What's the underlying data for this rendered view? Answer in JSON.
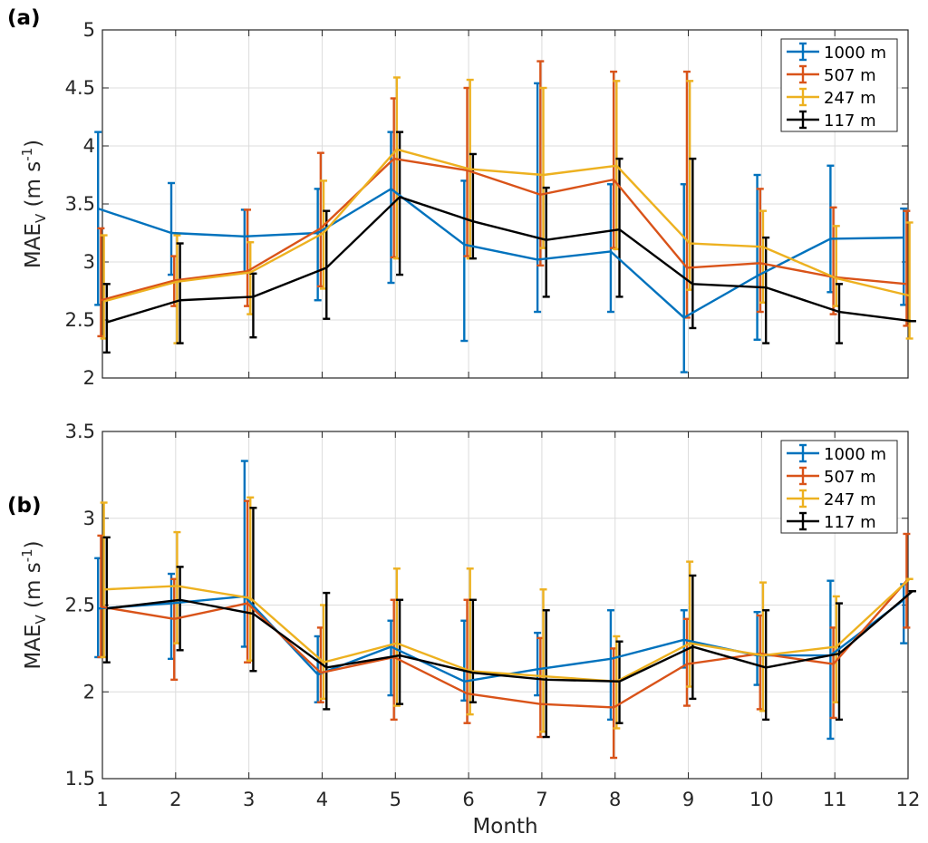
{
  "chart_data": [
    {
      "type": "line",
      "panel_label": "(a)",
      "xlabel": "",
      "ylabel": "MAE",
      "ylabel_sub": "V",
      "ylabel_units": "(m s",
      "ylabel_sup": "-1",
      "ylabel_close": ")",
      "xlim": [
        1,
        12
      ],
      "ylim": [
        2,
        5
      ],
      "xticks": [
        "1",
        "2",
        "3",
        "4",
        "5",
        "6",
        "7",
        "8",
        "9",
        "10",
        "11",
        "12"
      ],
      "yticks": [
        "2",
        "2.5",
        "3",
        "3.5",
        "4",
        "4.5",
        "5"
      ],
      "grid": true,
      "legend": "top-right",
      "x": [
        1,
        2,
        3,
        4,
        5,
        6,
        7,
        8,
        9,
        10,
        11,
        12
      ],
      "series": [
        {
          "name": "1000 m",
          "color": "#0072BD",
          "values": [
            3.46,
            3.25,
            3.22,
            3.25,
            3.63,
            3.15,
            3.02,
            3.09,
            2.52,
            2.88,
            3.2,
            3.21
          ],
          "err_low": [
            2.63,
            2.89,
            2.91,
            2.67,
            2.82,
            2.32,
            2.57,
            2.57,
            2.05,
            2.33,
            2.74,
            2.63
          ],
          "err_high": [
            4.12,
            3.68,
            3.45,
            3.63,
            4.12,
            3.7,
            4.54,
            3.67,
            3.67,
            3.75,
            3.83,
            3.46
          ]
        },
        {
          "name": "507 m",
          "color": "#D95319",
          "values": [
            2.67,
            2.84,
            2.92,
            3.29,
            3.89,
            3.79,
            3.58,
            3.71,
            2.95,
            2.99,
            2.87,
            2.81
          ],
          "err_low": [
            2.36,
            2.62,
            2.62,
            2.79,
            3.04,
            3.05,
            2.97,
            3.12,
            2.52,
            2.57,
            2.55,
            2.45
          ],
          "err_high": [
            3.29,
            3.05,
            3.45,
            3.94,
            4.41,
            4.5,
            4.73,
            4.64,
            4.64,
            3.63,
            3.47,
            3.44
          ]
        },
        {
          "name": "247 m",
          "color": "#EDB120",
          "values": [
            2.66,
            2.83,
            2.91,
            3.25,
            3.97,
            3.8,
            3.75,
            3.83,
            3.16,
            3.13,
            2.86,
            2.71
          ],
          "err_low": [
            2.34,
            2.3,
            2.55,
            2.77,
            3.03,
            3.03,
            3.12,
            3.11,
            2.76,
            2.65,
            2.62,
            2.34
          ],
          "err_high": [
            3.23,
            3.23,
            3.17,
            3.7,
            4.59,
            4.57,
            4.5,
            4.56,
            4.56,
            3.44,
            3.31,
            3.34
          ]
        },
        {
          "name": "117 m",
          "color": "#000000",
          "values": [
            2.48,
            2.67,
            2.7,
            2.95,
            3.56,
            3.35,
            3.19,
            3.28,
            2.81,
            2.78,
            2.57,
            2.49
          ],
          "err_low": [
            2.22,
            2.3,
            2.35,
            2.51,
            2.89,
            3.03,
            2.7,
            2.7,
            2.43,
            2.3,
            2.3,
            2.49
          ],
          "err_high": [
            2.81,
            3.16,
            2.9,
            3.44,
            4.12,
            3.93,
            3.64,
            3.89,
            3.89,
            3.21,
            2.81,
            2.49
          ]
        }
      ]
    },
    {
      "type": "line",
      "panel_label": "(b)",
      "xlabel": "Month",
      "ylabel": "MAE",
      "ylabel_sub": "V",
      "ylabel_units": "(m s",
      "ylabel_sup": "-1",
      "ylabel_close": ")",
      "xlim": [
        1,
        12
      ],
      "ylim": [
        1.5,
        3.5
      ],
      "xticks": [
        "1",
        "2",
        "3",
        "4",
        "5",
        "6",
        "7",
        "8",
        "9",
        "10",
        "11",
        "12"
      ],
      "yticks": [
        "1.5",
        "2",
        "2.5",
        "3",
        "3.5"
      ],
      "grid": true,
      "legend": "top-right",
      "x": [
        1,
        2,
        3,
        4,
        5,
        6,
        7,
        8,
        9,
        10,
        11,
        12
      ],
      "series": [
        {
          "name": "1000 m",
          "color": "#0072BD",
          "values": [
            2.48,
            2.51,
            2.55,
            2.1,
            2.26,
            2.06,
            2.13,
            2.19,
            2.3,
            2.21,
            2.21,
            2.53
          ],
          "err_low": [
            2.2,
            2.19,
            2.26,
            1.94,
            1.98,
            1.95,
            1.98,
            1.84,
            2.14,
            2.04,
            1.73,
            2.28
          ],
          "err_high": [
            2.77,
            2.68,
            3.33,
            2.32,
            2.41,
            2.41,
            2.34,
            2.47,
            2.47,
            2.46,
            2.64,
            2.62
          ]
        },
        {
          "name": "507 m",
          "color": "#D95319",
          "values": [
            2.49,
            2.42,
            2.51,
            2.11,
            2.2,
            1.99,
            1.93,
            1.91,
            2.16,
            2.22,
            2.16,
            2.64
          ],
          "err_low": [
            2.2,
            2.07,
            2.17,
            1.94,
            1.84,
            1.82,
            1.74,
            1.62,
            1.92,
            1.9,
            1.85,
            2.37
          ],
          "err_high": [
            2.9,
            2.65,
            3.1,
            2.37,
            2.53,
            2.53,
            2.31,
            2.25,
            2.42,
            2.44,
            2.37,
            2.91
          ]
        },
        {
          "name": "247 m",
          "color": "#EDB120",
          "values": [
            2.59,
            2.61,
            2.54,
            2.17,
            2.28,
            2.12,
            2.09,
            2.06,
            2.28,
            2.21,
            2.26,
            2.65
          ],
          "err_low": [
            2.2,
            2.28,
            2.18,
            1.96,
            1.92,
            1.87,
            1.77,
            1.79,
            2.03,
            1.89,
            1.94,
            2.65
          ],
          "err_high": [
            3.09,
            2.92,
            3.12,
            2.5,
            2.71,
            2.71,
            2.59,
            2.32,
            2.75,
            2.63,
            2.55,
            2.65
          ]
        },
        {
          "name": "117 m",
          "color": "#000000",
          "values": [
            2.48,
            2.53,
            2.45,
            2.14,
            2.21,
            2.11,
            2.07,
            2.06,
            2.26,
            2.14,
            2.22,
            2.58
          ],
          "err_low": [
            2.17,
            2.24,
            2.12,
            1.9,
            1.93,
            1.94,
            1.74,
            1.82,
            1.96,
            1.84,
            1.84,
            2.58
          ],
          "err_high": [
            2.89,
            2.72,
            3.06,
            2.57,
            2.53,
            2.53,
            2.47,
            2.29,
            2.67,
            2.47,
            2.51,
            2.58
          ]
        }
      ]
    }
  ]
}
